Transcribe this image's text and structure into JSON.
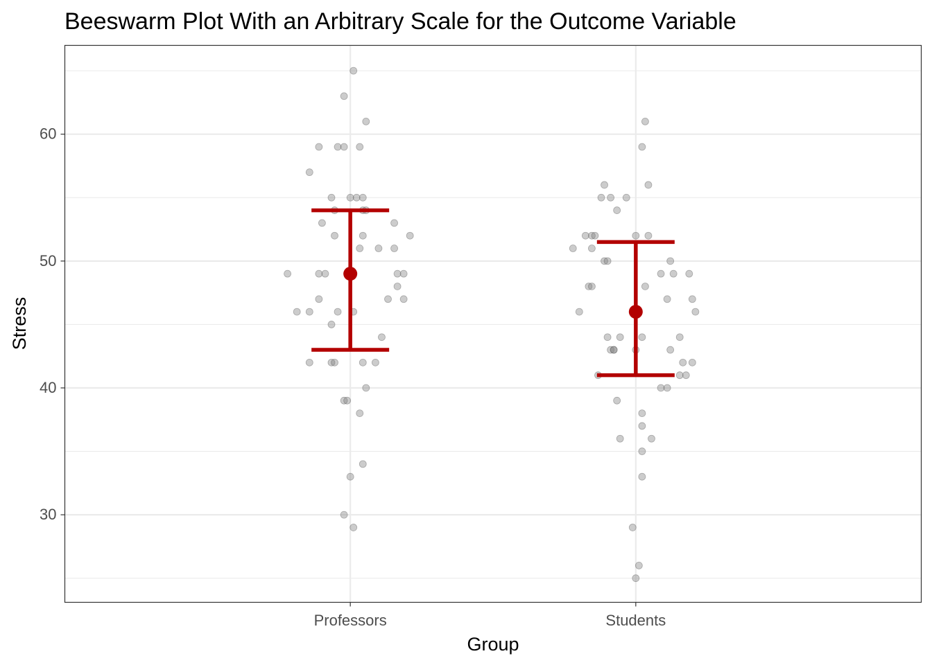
{
  "chart_data": {
    "type": "scatter",
    "title": "Beeswarm Plot With an Arbitrary Scale for the Outcome Variable",
    "xlabel": "Group",
    "ylabel": "Stress",
    "categories": [
      "Professors",
      "Students"
    ],
    "ylim": [
      23.1,
      67.0
    ],
    "yticks": [
      "30",
      "40",
      "50",
      "60"
    ],
    "grid": true,
    "colors": {
      "points": "#808080",
      "summary": "#b30000",
      "grid": "#ebebeb",
      "panel_border": "#333333"
    },
    "series": [
      {
        "category": "Professors",
        "values": [
          65,
          63,
          61,
          59,
          59,
          59,
          59,
          57,
          55,
          55,
          55,
          55,
          54,
          54,
          54,
          53,
          53,
          52,
          52,
          52,
          51,
          51,
          51,
          49,
          49,
          49,
          49,
          49,
          48,
          47,
          47,
          47,
          46,
          46,
          46,
          46,
          45,
          44,
          42,
          42,
          42,
          42,
          42,
          40,
          39,
          39,
          38,
          34,
          33,
          30,
          29
        ],
        "offsets": [
          0.01,
          -0.02,
          0.05,
          -0.1,
          -0.04,
          -0.02,
          0.03,
          -0.13,
          -0.06,
          0.0,
          0.02,
          0.04,
          -0.05,
          0.04,
          0.05,
          -0.09,
          0.14,
          -0.05,
          0.04,
          0.19,
          0.03,
          0.09,
          0.14,
          -0.2,
          -0.1,
          -0.08,
          0.15,
          0.17,
          0.15,
          -0.1,
          0.12,
          0.17,
          -0.17,
          -0.13,
          -0.04,
          0.01,
          -0.06,
          0.1,
          -0.13,
          -0.06,
          -0.05,
          0.04,
          0.08,
          0.05,
          -0.02,
          -0.01,
          0.03,
          0.04,
          0.0,
          -0.02,
          0.01
        ],
        "mean": 49,
        "lower": 43,
        "upper": 54
      },
      {
        "category": "Students",
        "values": [
          61,
          59,
          56,
          56,
          55,
          55,
          55,
          54,
          52,
          52,
          52,
          52,
          52,
          51,
          51,
          50,
          50,
          50,
          49,
          49,
          49,
          48,
          48,
          48,
          47,
          47,
          46,
          46,
          44,
          44,
          44,
          44,
          43,
          43,
          43,
          43,
          43,
          42,
          42,
          41,
          41,
          41,
          40,
          40,
          39,
          38,
          37,
          36,
          36,
          35,
          33,
          29,
          26,
          25
        ],
        "offsets": [
          0.03,
          0.02,
          -0.1,
          0.04,
          -0.11,
          -0.08,
          -0.03,
          -0.06,
          -0.16,
          -0.14,
          -0.13,
          0.0,
          0.04,
          -0.2,
          -0.14,
          -0.1,
          -0.09,
          0.11,
          0.08,
          0.12,
          0.17,
          -0.15,
          -0.14,
          0.03,
          0.1,
          0.18,
          -0.18,
          0.19,
          -0.09,
          -0.05,
          0.02,
          0.14,
          -0.08,
          -0.07,
          -0.07,
          0.0,
          0.11,
          0.15,
          0.18,
          -0.12,
          0.14,
          0.16,
          0.08,
          0.1,
          -0.06,
          0.02,
          0.02,
          -0.05,
          0.05,
          0.02,
          0.02,
          -0.01,
          0.01,
          -0.0
        ],
        "mean": 46,
        "lower": 41,
        "upper": 51.5
      }
    ]
  }
}
